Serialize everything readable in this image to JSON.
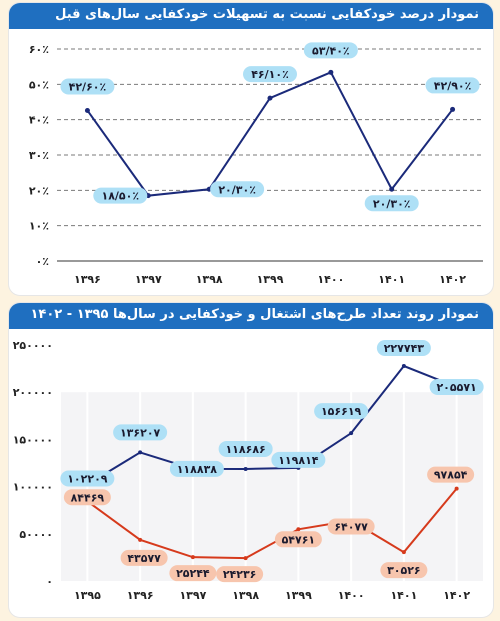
{
  "colors": {
    "header_bg": "#1f6fc0",
    "page_bg": "#fdf3e0",
    "line_navy": "#1b2a7a",
    "line_red": "#d63a1c",
    "label_blue": "#aee0f6",
    "label_orange": "#f7c5ad"
  },
  "chart_data": [
    {
      "type": "line",
      "title": "نمودار درصد خودکفایی نسبت به تسهیلات خودکفایی سال‌های قبل",
      "categories": [
        "۱۳۹۶",
        "۱۳۹۷",
        "۱۳۹۸",
        "۱۳۹۹",
        "۱۴۰۰",
        "۱۴۰۱",
        "۱۴۰۲"
      ],
      "y_tick_labels": [
        "۰٪",
        "۱۰٪",
        "۲۰٪",
        "۳۰٪",
        "۴۰٪",
        "۵۰٪",
        "۶۰٪"
      ],
      "ylim": [
        0,
        60
      ],
      "series": [
        {
          "values": [
            42.6,
            18.5,
            20.3,
            46.1,
            53.4,
            20.3,
            42.9
          ],
          "data_labels": [
            "۴۲/۶۰٪",
            "۱۸/۵۰٪",
            "۲۰/۳۰٪",
            "۴۶/۱۰٪",
            "۵۳/۴۰٪",
            "۲۰/۳۰٪",
            "۴۲/۹۰٪"
          ]
        }
      ],
      "grid": "horizontal-dashed"
    },
    {
      "type": "line",
      "title": "نمودار روند تعداد طرح‌های اشتغال و خودکفایی در سال‌ها ۱۳۹۵ - ۱۴۰۲",
      "categories": [
        "۱۳۹۵",
        "۱۳۹۶",
        "۱۳۹۷",
        "۱۳۹۸",
        "۱۳۹۹",
        "۱۴۰۰",
        "۱۴۰۱",
        "۱۴۰۲"
      ],
      "y_tick_labels": [
        "۰",
        "۵۰۰۰۰",
        "۱۰۰۰۰۰",
        "۱۵۰۰۰۰",
        "۲۰۰۰۰۰",
        "۲۵۰۰۰۰"
      ],
      "ylim": [
        0,
        250000
      ],
      "series": [
        {
          "values": [
            102209,
            136207,
            118838,
            118686,
            119814,
            156619,
            227743,
            205571
          ],
          "data_labels": [
            "۱۰۲۲۰۹",
            "۱۳۶۲۰۷",
            "۱۱۸۸۳۸",
            "۱۱۸۶۸۶",
            "۱۱۹۸۱۴",
            "۱۵۶۶۱۹",
            "۲۲۷۷۴۳",
            "۲۰۵۵۷۱"
          ]
        },
        {
          "values": [
            84469,
            43577,
            25244,
            24236,
            54761,
            64077,
            30526,
            97854
          ],
          "data_labels": [
            "۸۴۴۶۹",
            "۴۳۵۷۷",
            "۲۵۲۴۴",
            "۲۴۲۳۶",
            "۵۴۷۶۱",
            "۶۴۰۷۷",
            "۳۰۵۲۶",
            "۹۷۸۵۴"
          ]
        }
      ],
      "grid": "vertical"
    }
  ]
}
